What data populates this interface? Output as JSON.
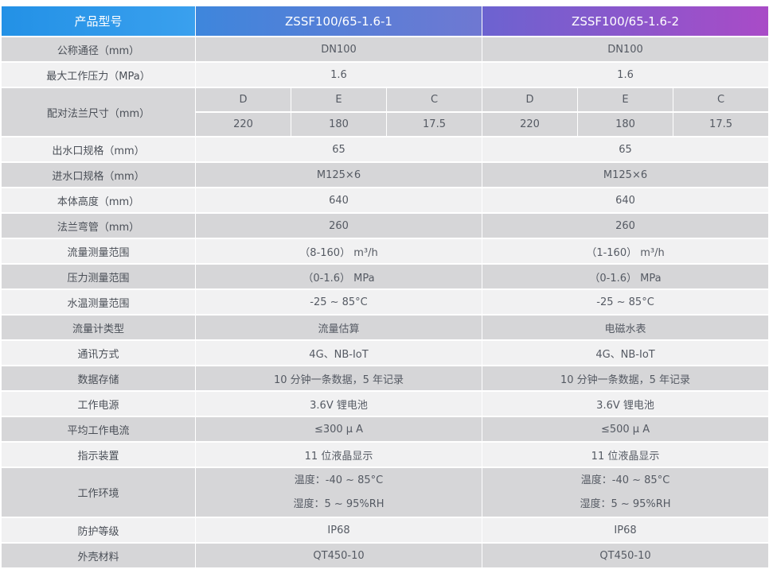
{
  "header": {
    "label": "产品型号",
    "model_1": "ZSSF100/65-1.6-1",
    "model_2": "ZSSF100/65-1.6-2"
  },
  "rows": {
    "nominal_diameter": {
      "label": "公称通径（mm）",
      "m1": "DN100",
      "m2": "DN100"
    },
    "max_pressure": {
      "label": "最大工作压力（MPa）",
      "m1": "1.6",
      "m2": "1.6"
    },
    "flange": {
      "label": "配对法兰尺寸（mm）",
      "cols": [
        "D",
        "E",
        "C"
      ],
      "m1": [
        "220",
        "180",
        "17.5"
      ],
      "m2": [
        "220",
        "180",
        "17.5"
      ]
    },
    "outlet": {
      "label": "出水口规格（mm）",
      "m1": "65",
      "m2": "65"
    },
    "inlet": {
      "label": "进水口规格（mm）",
      "m1": "M125×6",
      "m2": "M125×6"
    },
    "body_height": {
      "label": "本体高度（mm）",
      "m1": "640",
      "m2": "640"
    },
    "flange_elbow": {
      "label": "法兰弯管（mm）",
      "m1": "260",
      "m2": "260"
    },
    "flow_range": {
      "label": "流量测量范围",
      "m1": "（8-160） m³/h",
      "m2": "（1-160） m³/h"
    },
    "pressure_range": {
      "label": "压力测量范围",
      "m1": "（0-1.6） MPa",
      "m2": "（0-1.6） MPa"
    },
    "temp_range": {
      "label": "水温测量范围",
      "m1": "-25 ~ 85°C",
      "m2": "-25 ~ 85°C"
    },
    "meter_type": {
      "label": "流量计类型",
      "m1": "流量估算",
      "m2": "电磁水表"
    },
    "comm": {
      "label": "通讯方式",
      "m1": "4G、NB-IoT",
      "m2": "4G、NB-IoT"
    },
    "storage": {
      "label": "数据存储",
      "m1": "10 分钟一条数据，5 年记录",
      "m2": "10 分钟一条数据，5 年记录"
    },
    "power": {
      "label": "工作电源",
      "m1": "3.6V 锂电池",
      "m2": "3.6V 锂电池"
    },
    "avg_current": {
      "label": "平均工作电流",
      "m1": "≤300 μ A",
      "m2": "≤500 μ A"
    },
    "display": {
      "label": "指示装置",
      "m1": "11 位液晶显示",
      "m2": "11 位液晶显示"
    },
    "environment": {
      "label": "工作环境",
      "m1": [
        "温度：-40 ~ 85°C",
        "湿度：5 ~ 95%RH"
      ],
      "m2": [
        "温度：-40 ~ 85°C",
        "湿度：5 ~ 95%RH"
      ]
    },
    "protection": {
      "label": "防护等级",
      "m1": "IP68",
      "m2": "IP68"
    },
    "housing": {
      "label": "外壳材料",
      "m1": "QT450-10",
      "m2": "QT450-10"
    }
  }
}
